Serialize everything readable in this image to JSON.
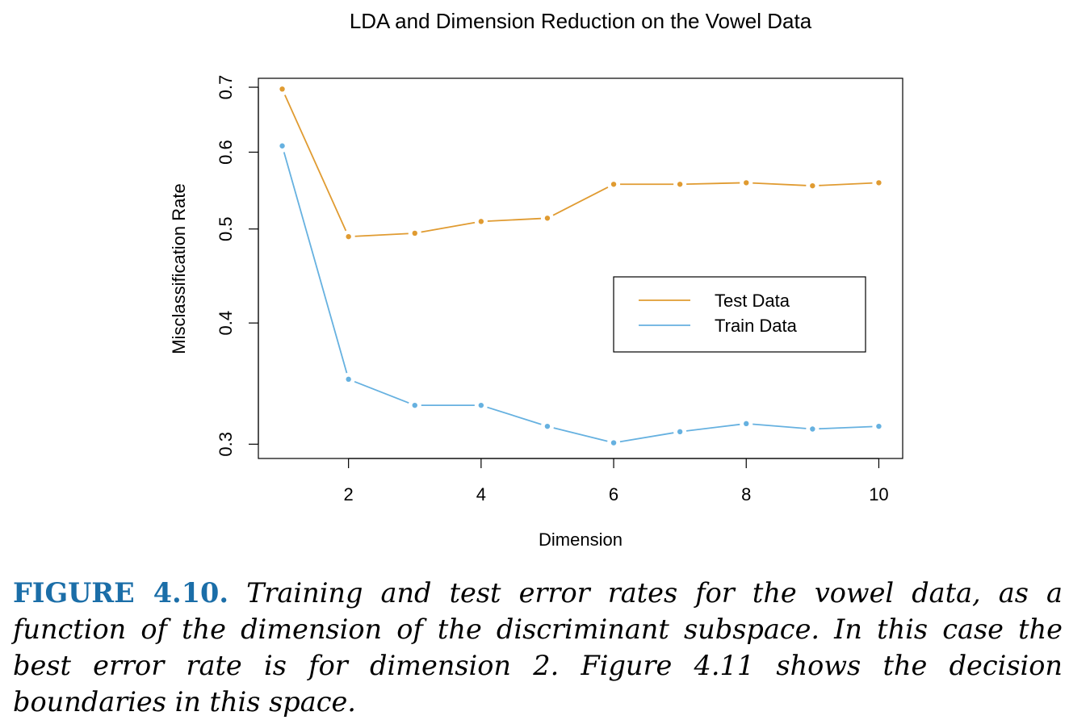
{
  "chart_data": {
    "type": "line",
    "title": "LDA and Dimension Reduction on the Vowel Data",
    "xlabel": "Dimension",
    "ylabel": "Misclassification Rate",
    "x": [
      1,
      2,
      3,
      4,
      5,
      6,
      7,
      8,
      9,
      10
    ],
    "xticks": [
      "2",
      "4",
      "6",
      "8",
      "10"
    ],
    "yticks": [
      "0.3",
      "0.4",
      "0.5",
      "0.6",
      "0.7"
    ],
    "yscale": "log",
    "ylim": [
      0.29,
      0.715
    ],
    "xlim": [
      0.64,
      10.36
    ],
    "grid": false,
    "legend_position": "center-right",
    "series": [
      {
        "name": "Test Data",
        "color": "#e09b31",
        "values": [
          0.697,
          0.491,
          0.495,
          0.509,
          0.513,
          0.556,
          0.556,
          0.558,
          0.554,
          0.558
        ]
      },
      {
        "name": "Train Data",
        "color": "#66b1e0",
        "values": [
          0.609,
          0.35,
          0.329,
          0.329,
          0.313,
          0.301,
          0.309,
          0.315,
          0.311,
          0.313
        ]
      }
    ]
  },
  "caption": {
    "label": "FIGURE 4.10.",
    "text": "Training and test error rates for the vowel data, as a function of the dimension of the discriminant subspace. In this case the best error rate is for dimension 2. Figure 4.11 shows the decision boundaries in this space."
  }
}
